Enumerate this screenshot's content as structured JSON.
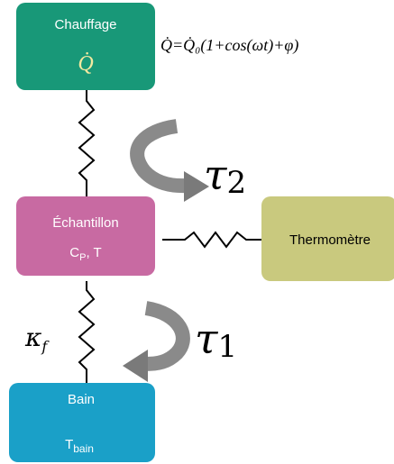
{
  "nodes": [
    {
      "label": "Chauffage",
      "symbol": "Q̇"
    },
    {
      "label": "Échantillon",
      "symbol": {
        "base": "C",
        "sub": "P",
        "rest": ", T"
      }
    },
    {
      "label": "Thermomètre"
    },
    {
      "label": "Bain",
      "symbol": {
        "base": "T",
        "sub": "bain"
      }
    }
  ],
  "formula": "Q̇=Q̇₀(1+cos(ωt)+φ)",
  "couplings": [
    {
      "base": "τ",
      "sub": "2"
    },
    {
      "base": "τ",
      "sub": "1"
    },
    {
      "base": "κ",
      "sub": "f"
    }
  ]
}
